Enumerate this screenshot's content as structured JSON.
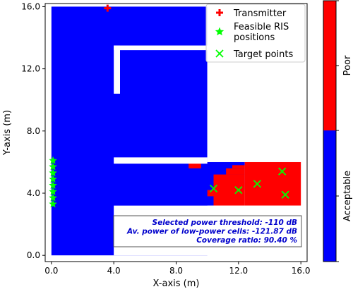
{
  "chart_data": {
    "type": "heatmap",
    "title": "",
    "xlabel": "X-axis (m)",
    "ylabel": "Y-axis (m)",
    "xlim": [
      -0.4,
      16.4
    ],
    "ylim": [
      -0.4,
      16.2
    ],
    "xticks": [
      0,
      4,
      8,
      12,
      16
    ],
    "xtick_labels": [
      "0.0",
      "4.0",
      "8.0",
      "12.0",
      "16.0"
    ],
    "yticks": [
      0,
      4,
      8,
      12,
      16
    ],
    "ytick_labels": [
      "0.0",
      "4.0",
      "8.0",
      "12.0",
      "16.0"
    ],
    "grid": false,
    "legend_position": "top-right",
    "colors": {
      "acceptable": "#0000ff",
      "poor": "#ff0000",
      "wall": "#ffffff",
      "transmitter": "#ff0000",
      "ris": "#00ff00",
      "target": "#00ff00"
    },
    "regions": {
      "acceptable": [
        {
          "x0": 0,
          "x1": 10,
          "y0": 0,
          "y1": 16
        },
        {
          "x0": 4,
          "x1": 12.4,
          "y0": 4.2,
          "y1": 6
        },
        {
          "x0": 4,
          "x1": 10.4,
          "y0": 3.2,
          "y1": 4.2
        }
      ],
      "poor": [
        {
          "x0": 12.4,
          "x1": 16,
          "y0": 3.2,
          "y1": 6
        },
        {
          "x0": 10.4,
          "x1": 12.4,
          "y0": 3.2,
          "y1": 5.2
        },
        {
          "x0": 11.2,
          "x1": 12.4,
          "y0": 5.2,
          "y1": 5.6
        },
        {
          "x0": 11.6,
          "x1": 12.4,
          "y0": 5.6,
          "y1": 5.8
        },
        {
          "x0": 8.8,
          "x1": 9.6,
          "y0": 5.6,
          "y1": 6
        },
        {
          "x0": 10,
          "x1": 10.4,
          "y0": 3.8,
          "y1": 4.2
        }
      ],
      "walls": [
        {
          "x0": 4,
          "x1": 10,
          "y0": 5.9,
          "y1": 6.3
        },
        {
          "x0": 4,
          "x1": 16,
          "y0": 3.0,
          "y1": 3.2
        },
        {
          "x0": 10,
          "x1": 16,
          "y0": 6.0,
          "y1": 16.2
        },
        {
          "x0": 4,
          "x1": 10,
          "y0": 13.2,
          "y1": 13.5
        },
        {
          "x0": 4,
          "x1": 4.4,
          "y0": 10.4,
          "y1": 13.5
        },
        {
          "x0": 4,
          "x1": 16,
          "y0": 0,
          "y1": 3.0
        }
      ]
    },
    "series": [
      {
        "name": "Transmitter",
        "marker": "plus",
        "points": [
          [
            3.6,
            15.9
          ]
        ]
      },
      {
        "name": "Feasible RIS positions",
        "marker": "star",
        "points": [
          [
            0.1,
            3.3
          ],
          [
            0.1,
            3.7
          ],
          [
            0.1,
            4.1
          ],
          [
            0.1,
            4.5
          ],
          [
            0.1,
            4.9
          ],
          [
            0.1,
            5.3
          ],
          [
            0.1,
            5.7
          ],
          [
            0.1,
            6.1
          ]
        ]
      },
      {
        "name": "Target points",
        "marker": "x",
        "points": [
          [
            10.4,
            4.3
          ],
          [
            12.0,
            4.2
          ],
          [
            13.2,
            4.6
          ],
          [
            14.8,
            5.4
          ],
          [
            15.0,
            3.9
          ]
        ]
      }
    ],
    "legend": [
      "Transmitter",
      "Feasible RIS positions",
      "Target points"
    ],
    "annotation": [
      "Selected power threshold: -110 dB",
      "Av. power of low-power cells: -121.87 dB",
      "Coverage ratio: 90.40 %"
    ],
    "colorbar": {
      "labels": [
        "Acceptable",
        "Poor"
      ],
      "colors": [
        "#0000ff",
        "#ff0000"
      ]
    }
  }
}
